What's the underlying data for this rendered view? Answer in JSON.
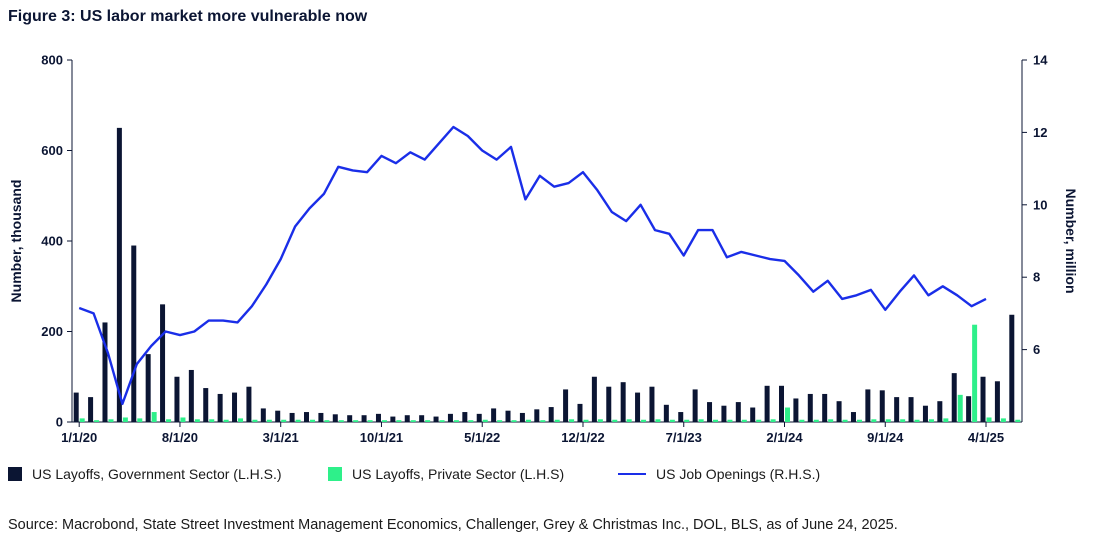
{
  "title": "Figure 3: US labor market more vulnerable now",
  "source": "Source: Macrobond, State Street Investment Management Economics, Challenger, Grey & Christmas Inc., DOL, BLS, as of June 24, 2025.",
  "colors": {
    "government": "#0b1533",
    "private": "#2ef08a",
    "openings": "#1a2ee8"
  },
  "chart_data": {
    "type": "bar",
    "ylabel_left": "Number, thousand",
    "ylabel_right": "Number, million",
    "ylim_left": [
      0,
      800
    ],
    "ylim_right": [
      4,
      14
    ],
    "yticks_left": [
      "0",
      "200",
      "400",
      "600",
      "800"
    ],
    "yticks_right": [
      "6",
      "8",
      "10",
      "12",
      "14"
    ],
    "x_ticks": [
      {
        "index": 0,
        "label": "1/1/20"
      },
      {
        "index": 7,
        "label": "8/1/20"
      },
      {
        "index": 14,
        "label": "3/1/21"
      },
      {
        "index": 21,
        "label": "10/1/21"
      },
      {
        "index": 28,
        "label": "5/1/22"
      },
      {
        "index": 35,
        "label": "12/1/22"
      },
      {
        "index": 42,
        "label": "7/1/23"
      },
      {
        "index": 49,
        "label": "2/1/24"
      },
      {
        "index": 56,
        "label": "9/1/24"
      },
      {
        "index": 63,
        "label": "4/1/25"
      }
    ],
    "series": [
      {
        "name": "US Layoffs, Government Sector (L.H.S.)",
        "axis": "left",
        "kind": "bar",
        "values": [
          65,
          55,
          220,
          650,
          390,
          150,
          260,
          100,
          115,
          75,
          62,
          65,
          78,
          30,
          25,
          20,
          22,
          20,
          17,
          15,
          15,
          18,
          12,
          15,
          15,
          12,
          18,
          22,
          18,
          30,
          25,
          20,
          28,
          33,
          72,
          40,
          100,
          78,
          88,
          65,
          78,
          38,
          22,
          72,
          44,
          36,
          44,
          32,
          80,
          80,
          52,
          62,
          62,
          46,
          22,
          72,
          70,
          55,
          55,
          36,
          46,
          108,
          57,
          100,
          90,
          237
        ],
        "range": [
          0,
          800
        ]
      },
      {
        "name": "US Layoffs, Private Sector (L.H.S)",
        "axis": "left",
        "kind": "bar",
        "values": [
          8,
          4,
          6,
          10,
          8,
          22,
          6,
          10,
          6,
          6,
          5,
          8,
          5,
          5,
          5,
          5,
          5,
          4,
          4,
          4,
          4,
          4,
          4,
          4,
          4,
          4,
          4,
          4,
          5,
          4,
          4,
          5,
          4,
          5,
          6,
          5,
          6,
          5,
          6,
          5,
          6,
          5,
          5,
          6,
          5,
          5,
          5,
          5,
          6,
          32,
          5,
          5,
          6,
          5,
          5,
          6,
          6,
          6,
          5,
          6,
          8,
          60,
          215,
          10,
          8,
          5
        ],
        "range": [
          0,
          800
        ]
      },
      {
        "name": "US Job Openings (R.H.S.)",
        "axis": "right",
        "kind": "line",
        "values": [
          7.15,
          7.0,
          5.9,
          4.5,
          5.6,
          6.1,
          6.5,
          6.4,
          6.5,
          6.8,
          6.8,
          6.75,
          7.2,
          7.8,
          8.5,
          9.4,
          9.9,
          10.3,
          11.05,
          10.95,
          10.9,
          11.35,
          11.15,
          11.45,
          11.25,
          11.7,
          12.15,
          11.9,
          11.5,
          11.25,
          11.6,
          10.15,
          10.8,
          10.5,
          10.6,
          10.9,
          10.4,
          9.8,
          9.55,
          10.0,
          9.3,
          9.2,
          8.6,
          9.3,
          9.3,
          8.55,
          8.7,
          8.6,
          8.5,
          8.45,
          8.05,
          7.6,
          7.9,
          7.4,
          7.5,
          7.65,
          7.1,
          7.6,
          8.05,
          7.5,
          7.75,
          7.5,
          7.2,
          7.4
        ],
        "range": [
          4,
          14
        ]
      }
    ]
  }
}
